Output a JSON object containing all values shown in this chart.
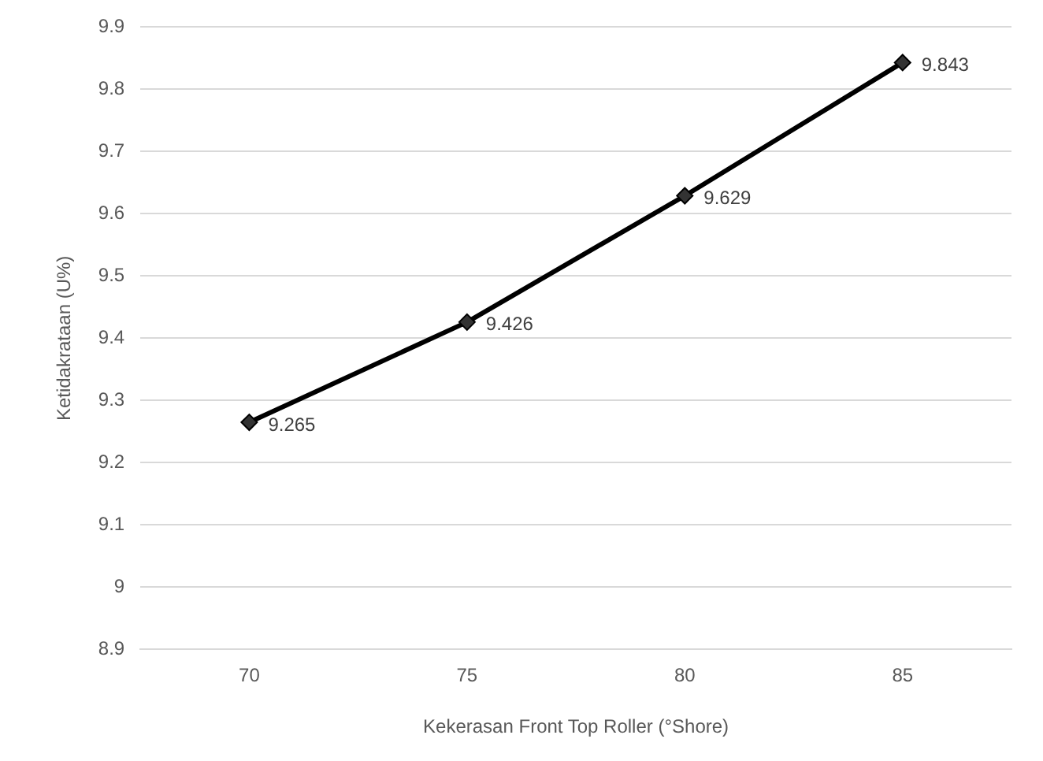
{
  "chart_data": {
    "type": "line",
    "xlabel": "Kekerasan Front Top Roller (°Shore)",
    "ylabel": "Ketidakrataan (U%)",
    "categories": [
      "70",
      "75",
      "80",
      "85"
    ],
    "series": [
      {
        "color": "#000000",
        "values": [
          9.265,
          9.426,
          9.629,
          9.843
        ]
      }
    ],
    "ylim": [
      8.9,
      9.9
    ],
    "yticks": [
      8.9,
      9,
      9.1,
      9.2,
      9.3,
      9.4,
      9.5,
      9.6,
      9.7,
      9.8,
      9.9
    ],
    "grid": "y",
    "legend": false,
    "marker": "diamond",
    "line_style": "solid",
    "data_labels": true
  }
}
